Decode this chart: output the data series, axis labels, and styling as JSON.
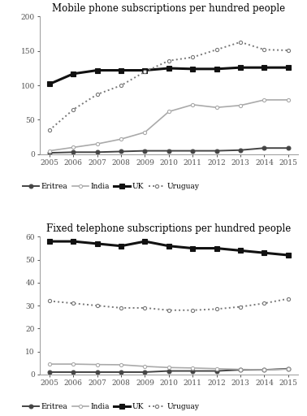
{
  "years": [
    2005,
    2006,
    2007,
    2008,
    2009,
    2010,
    2011,
    2012,
    2013,
    2014,
    2015
  ],
  "mobile": {
    "title": "Mobile phone subscriptions per hundred people",
    "ylim": [
      0,
      200
    ],
    "yticks": [
      0,
      50,
      100,
      150,
      200
    ],
    "Eritrea": [
      2,
      3,
      3,
      4,
      5,
      5,
      5,
      5,
      6,
      9,
      9
    ],
    "India": [
      5,
      10,
      15,
      22,
      32,
      62,
      72,
      68,
      71,
      79,
      79
    ],
    "UK": [
      102,
      117,
      122,
      122,
      122,
      125,
      124,
      124,
      126,
      126,
      126
    ],
    "Uruguay": [
      35,
      65,
      87,
      100,
      120,
      136,
      141,
      152,
      163,
      152,
      151
    ]
  },
  "fixed": {
    "title": "Fixed telephone subscriptions per hundred people",
    "ylim": [
      0,
      60
    ],
    "yticks": [
      0,
      10,
      20,
      30,
      40,
      50,
      60
    ],
    "Eritrea": [
      1,
      1,
      1,
      1,
      1,
      1.5,
      1.5,
      1.5,
      2,
      2,
      2.5
    ],
    "India": [
      4.5,
      4.5,
      4.3,
      4.2,
      3.5,
      3.0,
      2.8,
      2.5,
      2.2,
      2.0,
      2.3
    ],
    "UK": [
      58,
      58,
      57,
      56,
      58,
      56,
      55,
      55,
      54,
      53,
      52
    ],
    "Uruguay": [
      32,
      31,
      30,
      29,
      29,
      28,
      28,
      28.5,
      29.5,
      31,
      33
    ]
  },
  "line_styles": {
    "Eritrea": {
      "color": "#444444",
      "linestyle": "-",
      "linewidth": 1.4,
      "marker": "o",
      "markersize": 3.5,
      "markerfacecolor": "#444444",
      "markeredgecolor": "#444444"
    },
    "India": {
      "color": "#aaaaaa",
      "linestyle": "-",
      "linewidth": 1.2,
      "marker": "o",
      "markersize": 3.0,
      "markerfacecolor": "#ffffff",
      "markeredgecolor": "#aaaaaa"
    },
    "UK": {
      "color": "#111111",
      "linestyle": "-",
      "linewidth": 2.2,
      "marker": "s",
      "markersize": 4.0,
      "markerfacecolor": "#111111",
      "markeredgecolor": "#111111"
    },
    "Uruguay": {
      "color": "#777777",
      "linestyle": ":",
      "linewidth": 1.4,
      "marker": "o",
      "markersize": 3.0,
      "markerfacecolor": "#ffffff",
      "markeredgecolor": "#777777"
    }
  },
  "legend_order": [
    "Eritrea",
    "India",
    "UK",
    "Uruguay"
  ],
  "background_color": "#ffffff",
  "title_fontsize": 8.5,
  "tick_fontsize": 6.5,
  "legend_fontsize": 6.5
}
